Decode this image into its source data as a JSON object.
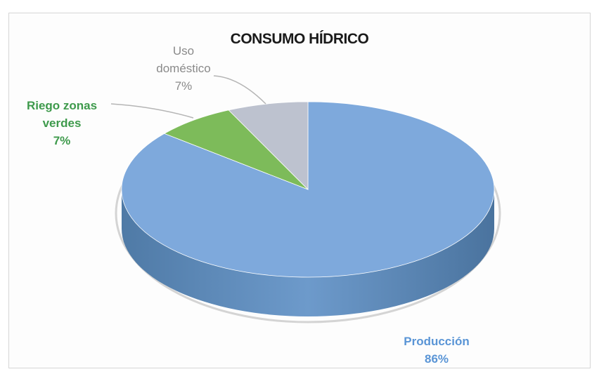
{
  "chart_data": {
    "type": "pie",
    "title": "CONSUMO HÍDRICO",
    "slices": [
      {
        "name": "Producción",
        "value": 86,
        "value_label": "86%",
        "color": "#7ea9dc"
      },
      {
        "name": "Riego zonas verdes",
        "value": 7,
        "value_label": "7%",
        "color": "#7dbb5a"
      },
      {
        "name": "Uso doméstico",
        "value": 7,
        "value_label": "7%",
        "color": "#bdc2cf"
      }
    ]
  },
  "labels": {
    "domestico_line1": "Uso",
    "domestico_line2": "doméstico",
    "domestico_pct": "7%",
    "riego_line1": "Riego zonas",
    "riego_line2": "verdes",
    "riego_pct": "7%",
    "produccion_line1": "Producción",
    "produccion_pct": "86%"
  }
}
